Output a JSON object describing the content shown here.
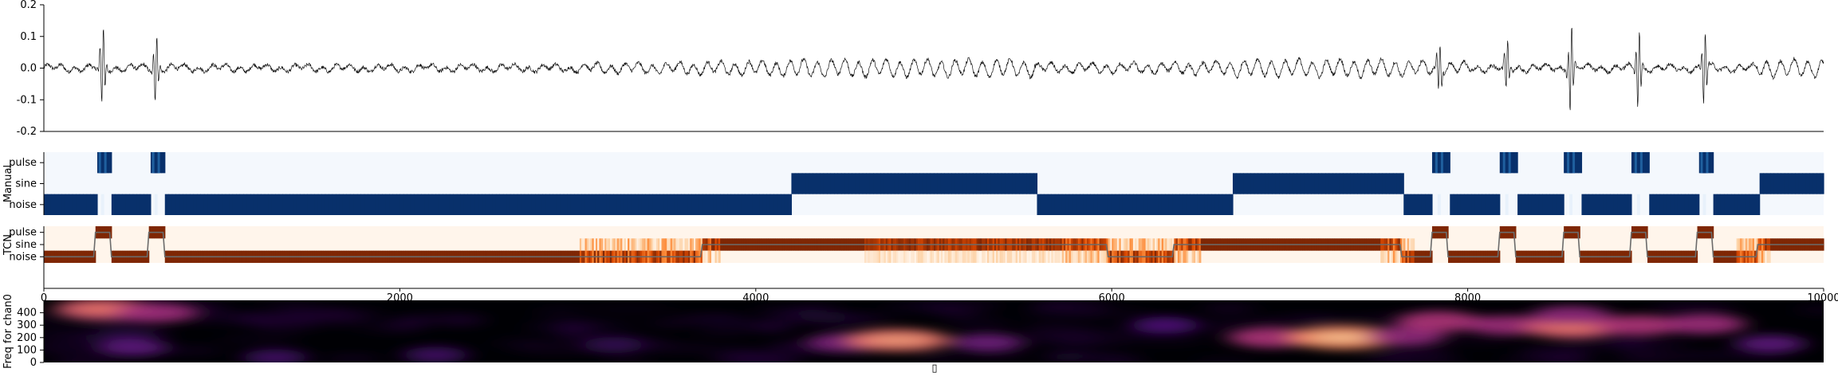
{
  "chart_data": [
    {
      "type": "line",
      "panel": "waveform",
      "ylim": [
        -0.2,
        0.2
      ],
      "yticks": [
        "0.2",
        "0.1",
        "0.0",
        "-0.1",
        "-0.2"
      ],
      "ytick_values": [
        0.2,
        0.1,
        0.0,
        -0.1,
        -0.2
      ],
      "xlim": [
        0,
        10000
      ],
      "events": [
        {
          "x": 330,
          "amp": 0.11,
          "type": "pulse"
        },
        {
          "x": 630,
          "amp": 0.09,
          "type": "pulse"
        },
        {
          "x": 7840,
          "amp": 0.07,
          "type": "pulse"
        },
        {
          "x": 8220,
          "amp": 0.07,
          "type": "pulse"
        },
        {
          "x": 8580,
          "amp": 0.12,
          "type": "pulse"
        },
        {
          "x": 8960,
          "amp": 0.11,
          "type": "pulse"
        },
        {
          "x": 9330,
          "amp": 0.1,
          "type": "pulse"
        }
      ],
      "sine_segments": [
        [
          4200,
          5570
        ],
        [
          6680,
          7620
        ],
        [
          9630,
          10000
        ]
      ],
      "grid": false
    },
    {
      "type": "heatmap",
      "panel": "manual",
      "ylabel": "Manual",
      "rows": [
        "pulse",
        "sine",
        "noise"
      ],
      "xlim": [
        0,
        10000
      ],
      "pulses": [
        330,
        630,
        7840,
        8220,
        8580,
        8960,
        9330
      ],
      "sine_segments": [
        [
          4200,
          5570
        ],
        [
          6680,
          7620
        ],
        [
          9630,
          10000
        ]
      ]
    },
    {
      "type": "heatmap",
      "panel": "tcn",
      "ylabel": "TCN",
      "rows": [
        "pulse",
        "sine",
        "noise"
      ],
      "xlim": [
        0,
        10000
      ],
      "xticks": [
        "0",
        "2000",
        "4000",
        "6000",
        "8000",
        "10000"
      ],
      "xtick_values": [
        0,
        2000,
        4000,
        6000,
        8000,
        10000
      ],
      "pulses": [
        330,
        630,
        7840,
        8220,
        8580,
        8960,
        9330
      ],
      "sine_segments": [
        [
          3700,
          5970
        ],
        [
          6350,
          7620
        ],
        [
          9630,
          10000
        ]
      ]
    },
    {
      "type": "heatmap",
      "panel": "spectrogram",
      "ylabel": "Freq for chan0",
      "yticks": [
        "400",
        "300",
        "200",
        "100",
        "0"
      ],
      "ytick_values": [
        400,
        300,
        200,
        100,
        0
      ],
      "ylim": [
        0,
        500
      ],
      "blobs": [
        {
          "x": 330,
          "f": 430,
          "i": 0.75
        },
        {
          "x": 630,
          "f": 400,
          "i": 0.55
        },
        {
          "x": 500,
          "f": 120,
          "i": 0.35
        },
        {
          "x": 1300,
          "f": 40,
          "i": 0.25
        },
        {
          "x": 2200,
          "f": 60,
          "i": 0.25
        },
        {
          "x": 3200,
          "f": 140,
          "i": 0.2
        },
        {
          "x": 4500,
          "f": 160,
          "i": 0.45
        },
        {
          "x": 4800,
          "f": 180,
          "i": 0.85
        },
        {
          "x": 5300,
          "f": 160,
          "i": 0.4
        },
        {
          "x": 6300,
          "f": 300,
          "i": 0.3
        },
        {
          "x": 6900,
          "f": 200,
          "i": 0.6
        },
        {
          "x": 7300,
          "f": 200,
          "i": 0.95
        },
        {
          "x": 7650,
          "f": 210,
          "i": 0.5
        },
        {
          "x": 7840,
          "f": 330,
          "i": 0.6
        },
        {
          "x": 8220,
          "f": 300,
          "i": 0.55
        },
        {
          "x": 8580,
          "f": 280,
          "i": 0.75
        },
        {
          "x": 8580,
          "f": 380,
          "i": 0.5
        },
        {
          "x": 8960,
          "f": 300,
          "i": 0.6
        },
        {
          "x": 9330,
          "f": 310,
          "i": 0.55
        },
        {
          "x": 9700,
          "f": 150,
          "i": 0.35
        }
      ],
      "xlabel_glyph": "▯"
    }
  ]
}
